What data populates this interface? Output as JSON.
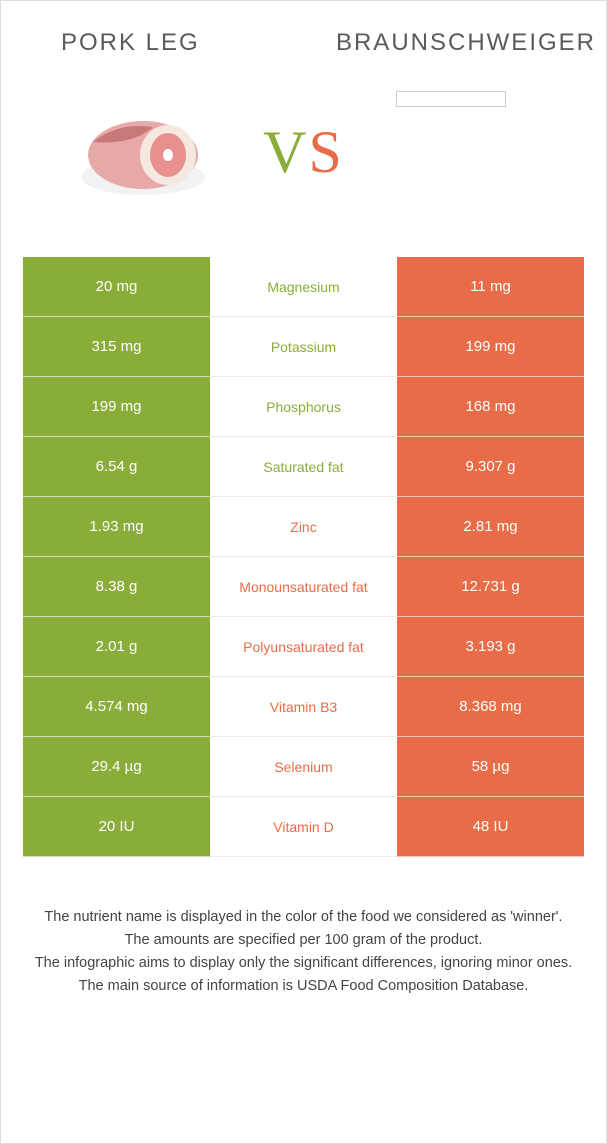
{
  "header": {
    "left_title": "PORK LEG",
    "right_title": "BRAUNSCHWEIGER"
  },
  "vs": {
    "text": "VS",
    "left_color": "#8aad3a",
    "right_color": "#e86c47"
  },
  "colors": {
    "left_bg": "#8aad3a",
    "right_bg": "#e86c47",
    "mid_green": "#8aad3a",
    "mid_orange": "#e86c47"
  },
  "rows": [
    {
      "left": "20 mg",
      "label": "Magnesium",
      "right": "11 mg",
      "winner": "left"
    },
    {
      "left": "315 mg",
      "label": "Potassium",
      "right": "199 mg",
      "winner": "left"
    },
    {
      "left": "199 mg",
      "label": "Phosphorus",
      "right": "168 mg",
      "winner": "left"
    },
    {
      "left": "6.54 g",
      "label": "Saturated fat",
      "right": "9.307 g",
      "winner": "left"
    },
    {
      "left": "1.93 mg",
      "label": "Zinc",
      "right": "2.81 mg",
      "winner": "right"
    },
    {
      "left": "8.38 g",
      "label": "Monounsaturated fat",
      "right": "12.731 g",
      "winner": "right"
    },
    {
      "left": "2.01 g",
      "label": "Polyunsaturated fat",
      "right": "3.193 g",
      "winner": "right"
    },
    {
      "left": "4.574 mg",
      "label": "Vitamin B3",
      "right": "8.368 mg",
      "winner": "right"
    },
    {
      "left": "29.4 µg",
      "label": "Selenium",
      "right": "58 µg",
      "winner": "right"
    },
    {
      "left": "20 IU",
      "label": "Vitamin D",
      "right": "48 IU",
      "winner": "right"
    }
  ],
  "footer": {
    "line1": "The nutrient name is displayed in the color of the food we considered as 'winner'.",
    "line2": "The amounts are specified per 100 gram of the product.",
    "line3": "The infographic aims to display only the significant differences, ignoring minor ones.",
    "line4": "The main source of information is USDA Food Composition Database."
  }
}
